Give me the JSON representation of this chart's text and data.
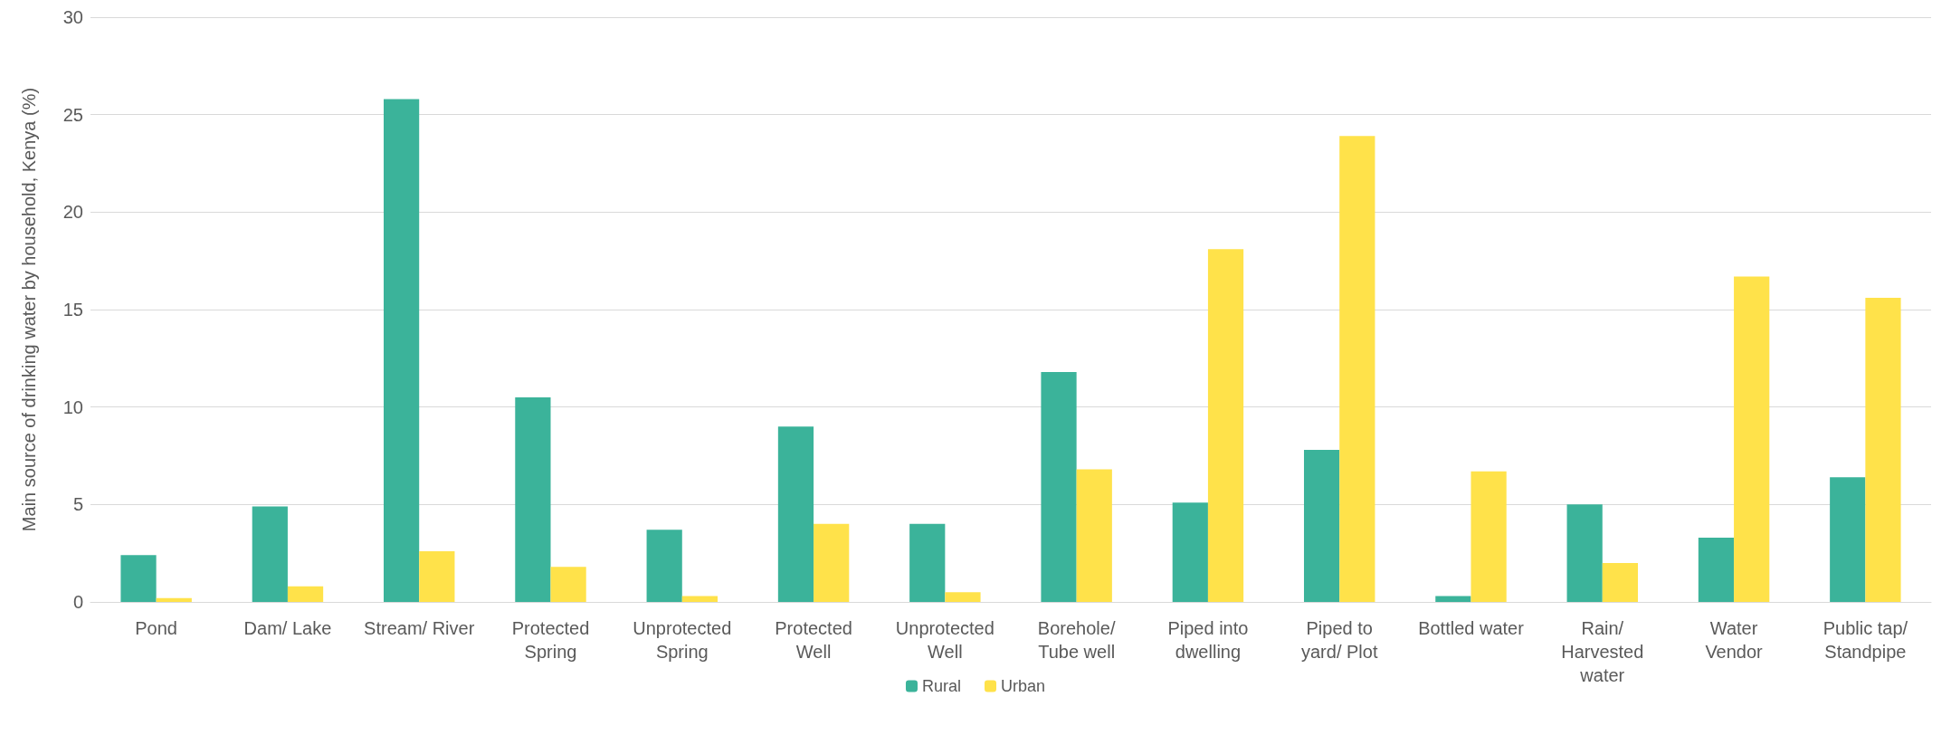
{
  "chart_data": {
    "type": "bar",
    "ylabel": "Main source of drinking water by household, Kenya (%)",
    "categories": [
      "Pond",
      "Dam/ Lake",
      "Stream/ River",
      "Protected\nSpring",
      "Unprotected\nSpring",
      "Protected\nWell",
      "Unprotected\nWell",
      "Borehole/\nTube well",
      "Piped into\ndwelling",
      "Piped to\nyard/ Plot",
      "Bottled water",
      "Rain/\nHarvested\nwater",
      "Water\nVendor",
      "Public tap/\nStandpipe"
    ],
    "series": [
      {
        "name": "Rural",
        "color": "#3bb39a",
        "values": [
          2.4,
          4.9,
          25.8,
          10.5,
          3.7,
          9.0,
          4.0,
          11.8,
          5.1,
          7.8,
          0.3,
          5.0,
          3.3,
          6.4
        ]
      },
      {
        "name": "Urban",
        "color": "#ffe24a",
        "values": [
          0.2,
          0.8,
          2.6,
          1.8,
          0.3,
          4.0,
          0.5,
          6.8,
          18.1,
          23.9,
          6.7,
          2.0,
          16.7,
          15.6
        ]
      }
    ],
    "ylim": [
      0,
      30
    ],
    "yticks": [
      0,
      5,
      10,
      15,
      20,
      25,
      30
    ],
    "grid": "y",
    "legend": "bottom"
  }
}
